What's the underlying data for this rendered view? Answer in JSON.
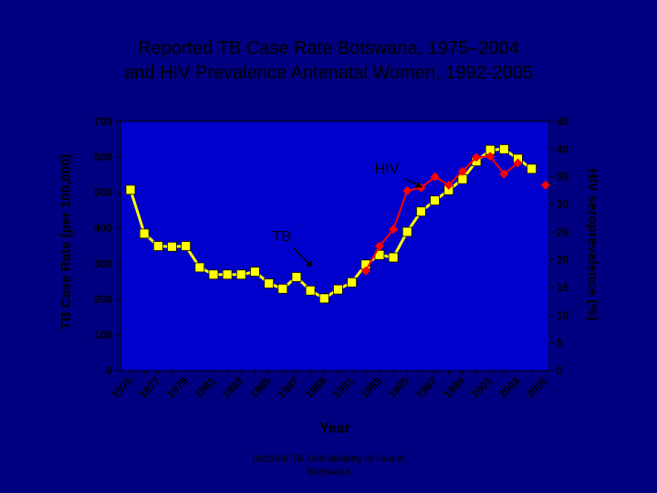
{
  "slide": {
    "title_line1": "Reported TB Case Rate Botswana, 1975–2004",
    "title_line2": "and HIV Prevalence  Antenatal Women, 1992-2005",
    "footer_line1": "09/2006 TB Unit Ministry of Health",
    "footer_line2": "Botswana"
  },
  "colors": {
    "background": "#000080",
    "plot_area": "#0000cc",
    "tb_line": "#ffff00",
    "hiv_line": "#ff0000",
    "hiv_marker": "#ff0000"
  },
  "chart_data": {
    "type": "line",
    "title": "Reported TB Case Rate Botswana, 1975–2004 and HIV Prevalence  Antenatal Women, 1992-2005",
    "xlabel": "Year",
    "ylabel_left": "TB Case Rate (per 100,000)",
    "ylabel_right": "HIV seroprevalence (%)",
    "x_tick_labels": [
      "1975",
      "1977",
      "1979",
      "1981",
      "1983",
      "1985",
      "1987",
      "1989",
      "1991",
      "1993",
      "1995",
      "1997",
      "1999",
      "2001",
      "2003",
      "2005"
    ],
    "ylim_left": [
      0,
      700
    ],
    "yticks_left": [
      0,
      100,
      200,
      300,
      400,
      500,
      600,
      700
    ],
    "ylim_right": [
      0,
      45
    ],
    "yticks_right": [
      0,
      5,
      10,
      15,
      20,
      25,
      30,
      35,
      40,
      45
    ],
    "grid": false,
    "annotations": [
      {
        "text": "TB",
        "points_to": "TB series near 1989"
      },
      {
        "text": "HIV",
        "points_to": "HIV series near 1997"
      }
    ],
    "series": [
      {
        "name": "TB",
        "axis": "left",
        "x": [
          1975,
          1976,
          1977,
          1978,
          1979,
          1980,
          1981,
          1982,
          1983,
          1984,
          1985,
          1986,
          1987,
          1988,
          1989,
          1990,
          1991,
          1992,
          1993,
          1994,
          1995,
          1996,
          1997,
          1998,
          1999,
          2000,
          2001,
          2002,
          2003,
          2004
        ],
        "values": [
          508,
          385,
          350,
          348,
          350,
          290,
          270,
          270,
          270,
          278,
          245,
          230,
          263,
          225,
          203,
          228,
          248,
          298,
          325,
          318,
          390,
          447,
          478,
          507,
          538,
          588,
          620,
          622,
          595,
          567
        ]
      },
      {
        "name": "HIV",
        "axis": "right",
        "x": [
          1992,
          1993,
          1994,
          1995,
          1996,
          1997,
          1998,
          1999,
          2000,
          2001,
          2002,
          2003,
          2004,
          2005
        ],
        "values": [
          18,
          22.5,
          25.5,
          32.5,
          33,
          35,
          33.5,
          36,
          38.5,
          38.7,
          35.5,
          37.5,
          null,
          33.5
        ]
      }
    ]
  }
}
